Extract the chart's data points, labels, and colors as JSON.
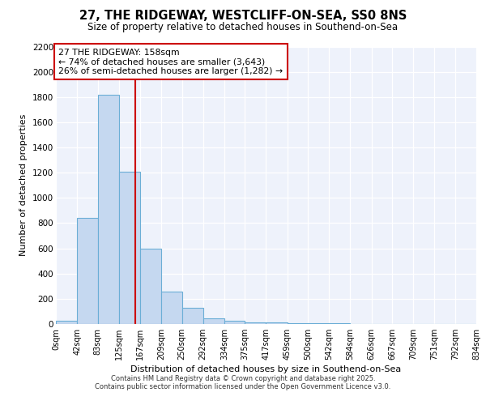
{
  "title_line1": "27, THE RIDGEWAY, WESTCLIFF-ON-SEA, SS0 8NS",
  "title_line2": "Size of property relative to detached houses in Southend-on-Sea",
  "xlabel": "Distribution of detached houses by size in Southend-on-Sea",
  "ylabel": "Number of detached properties",
  "bin_edges": [
    0,
    42,
    83,
    125,
    167,
    209,
    250,
    292,
    334,
    375,
    417,
    459,
    500,
    542,
    584,
    626,
    667,
    709,
    751,
    792,
    834
  ],
  "bar_heights": [
    25,
    840,
    1820,
    1210,
    600,
    255,
    130,
    45,
    25,
    15,
    10,
    5,
    5,
    5,
    3,
    3,
    3,
    2,
    2,
    2
  ],
  "bar_color": "#c5d8f0",
  "bar_edge_color": "#6baed6",
  "property_size": 158,
  "vline_color": "#cc0000",
  "annotation_text": "27 THE RIDGEWAY: 158sqm\n← 74% of detached houses are smaller (3,643)\n26% of semi-detached houses are larger (1,282) →",
  "annotation_box_color": "#ffffff",
  "annotation_box_edge": "#cc0000",
  "ylim": [
    0,
    2200
  ],
  "yticks": [
    0,
    200,
    400,
    600,
    800,
    1000,
    1200,
    1400,
    1600,
    1800,
    2000,
    2200
  ],
  "background_color": "#eef2fb",
  "grid_color": "#ffffff",
  "footer_line1": "Contains HM Land Registry data © Crown copyright and database right 2025.",
  "footer_line2": "Contains public sector information licensed under the Open Government Licence v3.0."
}
